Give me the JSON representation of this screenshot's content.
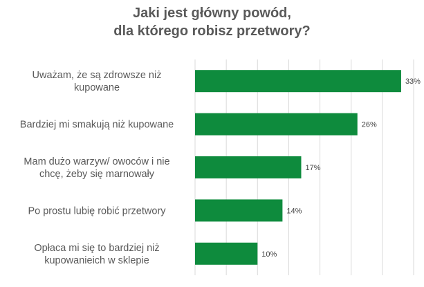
{
  "chart_data": {
    "type": "bar",
    "orientation": "horizontal",
    "title": [
      "Jaki jest główny powód,",
      "dla którego robisz przetwory?"
    ],
    "categories": [
      [
        "Uważam, że są zdrowsze niż",
        "kupowane"
      ],
      [
        "Bardziej mi smakują niż kupowane"
      ],
      [
        "Mam dużo warzyw/ owoców i nie",
        "chcę, żeby się marnowały"
      ],
      [
        "Po prostu lubię robić przetwory"
      ],
      [
        "Opłaca mi się to bardziej niż",
        "kupowanieich w sklepie"
      ]
    ],
    "values": [
      33,
      26,
      17,
      14,
      10
    ],
    "value_labels": [
      "33%",
      "26%",
      "17%",
      "14%",
      "10%"
    ],
    "xlim": [
      0,
      35
    ],
    "grid": true,
    "colors": {
      "bar": "#0e8b3d",
      "grid": "#d9d9d9",
      "text": "#595959"
    }
  }
}
